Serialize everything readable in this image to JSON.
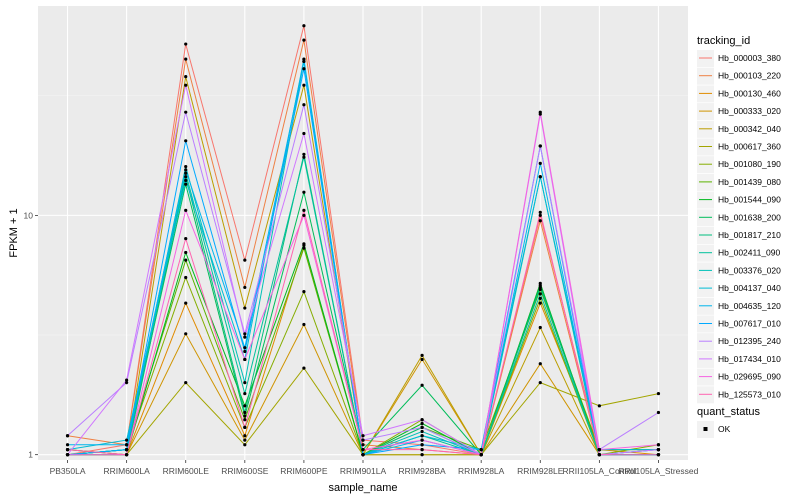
{
  "chart_data": {
    "type": "line",
    "xlabel": "sample_name",
    "ylabel": "FPKM + 1",
    "y_scale": "log10",
    "ylim": [
      0.95,
      75
    ],
    "y_ticks": [
      1,
      10
    ],
    "y_tick_labels": [
      "1",
      "10"
    ],
    "grid": true,
    "legend_placement": "right",
    "categories": [
      "PB350LA",
      "RRIM600LA",
      "RRIM600LE",
      "RRIM600SE",
      "RRIM600PE",
      "RRIM901LA",
      "RRIM928BA",
      "RRIM928LA",
      "RRIM928LE",
      "RRII105LA_Control",
      "RRII105LA_Stressed"
    ],
    "legend": {
      "title": "tracking_id",
      "second_title": "quant_status",
      "second_items": [
        "OK"
      ]
    },
    "series": [
      {
        "name": "Hb_000003_380",
        "color": "#F8766D",
        "values": [
          1.0,
          1.1,
          52,
          6.5,
          62,
          1.15,
          1.1,
          1.0,
          10,
          1.05,
          1.05
        ]
      },
      {
        "name": "Hb_000103_220",
        "color": "#EE8044",
        "values": [
          1.2,
          1.1,
          45,
          5.0,
          54,
          1.1,
          1.05,
          1.0,
          9.5,
          1.0,
          1.0
        ]
      },
      {
        "name": "Hb_000130_460",
        "color": "#E08B00",
        "values": [
          1.05,
          1.0,
          4.3,
          1.2,
          7.5,
          1.0,
          1.0,
          1.0,
          4.3,
          1.05,
          1.0
        ]
      },
      {
        "name": "Hb_000333_020",
        "color": "#CF9400",
        "values": [
          1.0,
          1.0,
          3.2,
          1.15,
          3.5,
          1.0,
          2.5,
          1.0,
          2.4,
          1.0,
          1.0
        ]
      },
      {
        "name": "Hb_000342_040",
        "color": "#BB9D00",
        "values": [
          1.0,
          1.0,
          38,
          4.1,
          35,
          1.0,
          2.6,
          1.0,
          3.4,
          1.0,
          1.0
        ]
      },
      {
        "name": "Hb_000617_360",
        "color": "#A3A500",
        "values": [
          1.0,
          1.0,
          2.0,
          1.1,
          2.3,
          1.0,
          1.0,
          1.0,
          2.0,
          1.6,
          1.8
        ]
      },
      {
        "name": "Hb_001080_190",
        "color": "#85AD00",
        "values": [
          1.0,
          1.05,
          5.5,
          1.3,
          4.8,
          1.0,
          1.4,
          1.0,
          4.5,
          1.0,
          1.1
        ]
      },
      {
        "name": "Hb_001439_080",
        "color": "#5BB300",
        "values": [
          1.0,
          1.05,
          6.5,
          1.4,
          7.3,
          1.0,
          1.3,
          1.05,
          4.9,
          1.05,
          1.05
        ]
      },
      {
        "name": "Hb_001544_090",
        "color": "#00B81F",
        "values": [
          1.05,
          1.0,
          7.0,
          1.6,
          7.6,
          1.0,
          1.35,
          1.0,
          5.2,
          1.0,
          1.0
        ]
      },
      {
        "name": "Hb_001638_200",
        "color": "#00BC59",
        "values": [
          1.0,
          1.05,
          13.5,
          1.45,
          12.5,
          1.05,
          1.95,
          1.0,
          5.1,
          1.0,
          1.05
        ]
      },
      {
        "name": "Hb_001817_210",
        "color": "#00BF7D",
        "values": [
          1.0,
          1.0,
          14.5,
          1.5,
          18,
          1.0,
          1.3,
          1.0,
          5.0,
          1.0,
          1.0
        ]
      },
      {
        "name": "Hb_002411_090",
        "color": "#00C19C",
        "values": [
          1.0,
          1.05,
          15,
          1.8,
          17.5,
          1.0,
          1.2,
          1.0,
          4.7,
          1.0,
          1.0
        ]
      },
      {
        "name": "Hb_003376_020",
        "color": "#00C0B8",
        "values": [
          1.0,
          1.05,
          16,
          2.0,
          44,
          1.0,
          1.25,
          1.0,
          14.5,
          1.0,
          1.0
        ]
      },
      {
        "name": "Hb_004137_040",
        "color": "#00BCD4",
        "values": [
          1.05,
          1.15,
          14,
          2.5,
          45,
          1.0,
          1.2,
          1.05,
          14.5,
          1.05,
          1.05
        ]
      },
      {
        "name": "Hb_004635_120",
        "color": "#00B5EC",
        "values": [
          1.1,
          1.1,
          15.5,
          2.8,
          44,
          1.0,
          1.15,
          1.0,
          16.5,
          1.0,
          1.0
        ]
      },
      {
        "name": "Hb_007617_010",
        "color": "#00A9FF",
        "values": [
          1.0,
          1.05,
          20.5,
          2.7,
          41,
          1.0,
          1.1,
          1.05,
          19.5,
          1.0,
          1.05
        ]
      },
      {
        "name": "Hb_012395_240",
        "color": "#BA7FFF",
        "values": [
          1.2,
          2.0,
          27,
          3.2,
          29,
          1.15,
          1.3,
          1.0,
          19.5,
          1.05,
          1.5
        ]
      },
      {
        "name": "Hb_017434_010",
        "color": "#D078FF",
        "values": [
          1.0,
          2.05,
          35,
          3.1,
          22,
          1.2,
          1.4,
          1.0,
          26.5,
          1.0,
          1.05
        ]
      },
      {
        "name": "Hb_029695_090",
        "color": "#F564E3",
        "values": [
          1.0,
          1.0,
          10.5,
          2.5,
          10,
          1.05,
          1.15,
          1.0,
          27,
          1.05,
          1.1
        ]
      },
      {
        "name": "Hb_125573_010",
        "color": "#FF64B0",
        "values": [
          1.05,
          1.0,
          8.0,
          1.3,
          10.5,
          1.05,
          1.05,
          1.0,
          10.3,
          1.0,
          1.0
        ]
      }
    ]
  }
}
